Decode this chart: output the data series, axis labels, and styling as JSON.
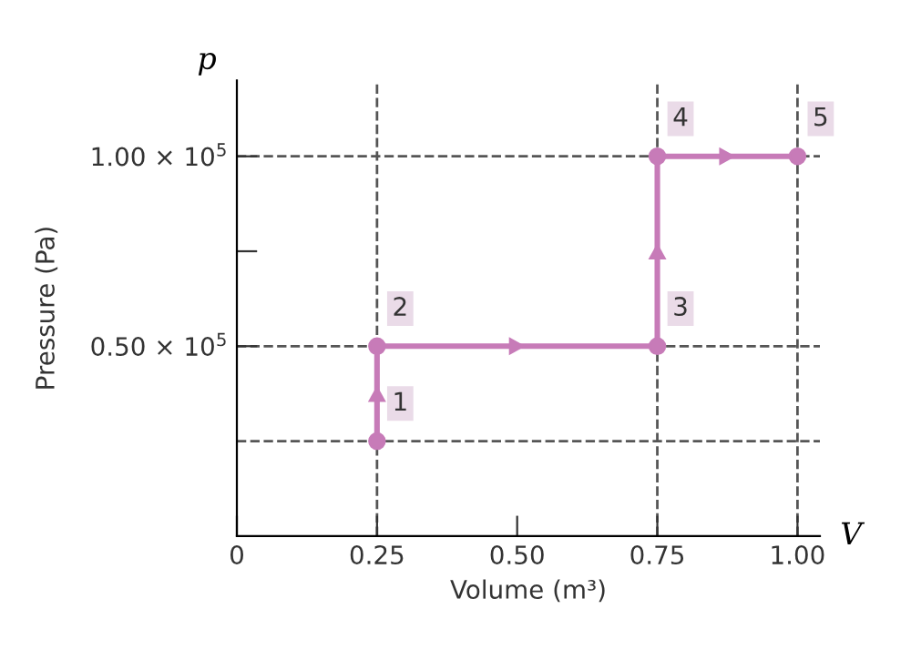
{
  "chart_data": {
    "type": "line",
    "xlabel": "Volume (m³)",
    "ylabel": "Pressure (Pa)",
    "x": [
      0.25,
      0.25,
      0.75,
      0.75,
      1.0
    ],
    "series": [
      {
        "color": "#c77bb8",
        "values": [
          25000,
          50000,
          50000,
          100000,
          100000
        ]
      }
    ],
    "marker": "circle",
    "line_style": "solid",
    "xlim": [
      0,
      1.04
    ],
    "xticks": [
      0,
      0.25,
      {
        "value": 0.5,
        "label": "0.50"
      },
      0.75,
      {
        "value": 1.0,
        "label": "1.00"
      }
    ],
    "ylim": [
      0,
      120000
    ],
    "yticks": [
      {
        "value": 50000,
        "label": "0.50 × 10$^{5}$"
      },
      {
        "value": 75000,
        "label": null
      },
      {
        "value": 100000,
        "label": "1.00 × 10$^{5}$"
      }
    ],
    "ref_lines": [
      {
        "axis": "y",
        "value": 25000,
        "color": "#555555",
        "line_style": "dashed"
      },
      {
        "axis": "y",
        "value": 50000,
        "color": "#555555",
        "line_style": "dashed"
      },
      {
        "axis": "y",
        "value": 100000,
        "color": "#555555",
        "line_style": "dashed"
      },
      {
        "axis": "x",
        "value": 0.25,
        "color": "#555555",
        "line_style": "dashed"
      },
      {
        "axis": "x",
        "value": 0.75,
        "color": "#555555",
        "line_style": "dashed"
      },
      {
        "axis": "x",
        "value": 1.0,
        "color": "#555555",
        "line_style": "dashed"
      }
    ],
    "annotations": [
      "p",
      "V",
      {
        "text": "1",
        "x": 0.25,
        "y": 25000
      },
      {
        "text": "2",
        "x": 0.25,
        "y": 50000
      },
      {
        "text": "3",
        "x": 0.75,
        "y": 50000
      },
      {
        "text": "4",
        "x": 0.75,
        "y": 100000
      },
      {
        "text": "5",
        "x": 1.0,
        "y": 100000
      }
    ],
    "grid": false,
    "legend": false
  }
}
